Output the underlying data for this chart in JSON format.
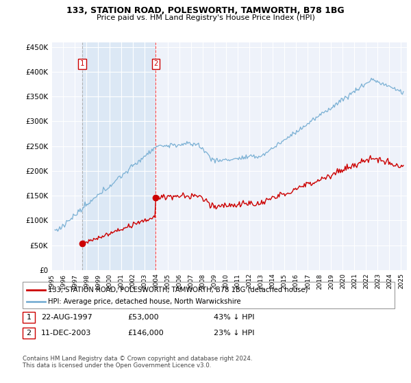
{
  "title": "133, STATION ROAD, POLESWORTH, TAMWORTH, B78 1BG",
  "subtitle": "Price paid vs. HM Land Registry's House Price Index (HPI)",
  "ylabel_ticks": [
    "£0",
    "£50K",
    "£100K",
    "£150K",
    "£200K",
    "£250K",
    "£300K",
    "£350K",
    "£400K",
    "£450K"
  ],
  "ytick_values": [
    0,
    50000,
    100000,
    150000,
    200000,
    250000,
    300000,
    350000,
    400000,
    450000
  ],
  "ylim": [
    0,
    460000
  ],
  "xlim_start": 1995.2,
  "xlim_end": 2025.5,
  "sale1_date": 1997.64,
  "sale1_price": 53000,
  "sale2_date": 2003.95,
  "sale2_price": 146000,
  "legend_property": "133, STATION ROAD, POLESWORTH, TAMWORTH, B78 1BG (detached house)",
  "legend_hpi": "HPI: Average price, detached house, North Warwickshire",
  "footer": "Contains HM Land Registry data © Crown copyright and database right 2024.\nThis data is licensed under the Open Government Licence v3.0.",
  "property_color": "#cc0000",
  "hpi_color": "#7ab0d4",
  "shade_color": "#dce8f5",
  "plot_bg_color": "#eef2fa",
  "grid_color": "#ffffff"
}
